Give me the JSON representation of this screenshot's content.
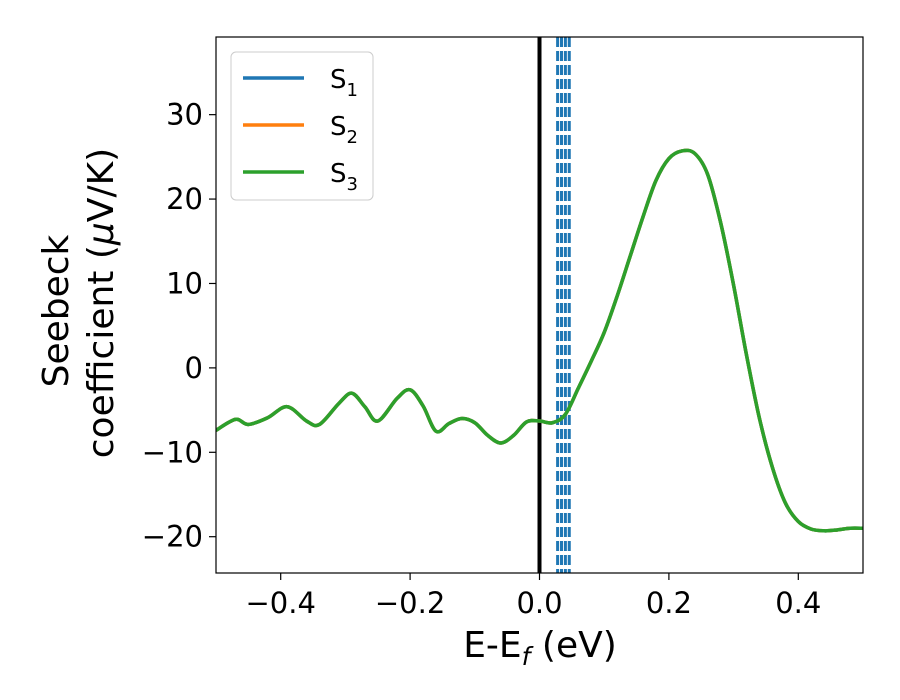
{
  "chart_data": {
    "type": "line",
    "xlabel": {
      "base": "E-E",
      "sub": "f",
      "rest": " (eV)"
    },
    "ylabel": {
      "line1": "Seebeck",
      "line2_pre": "coefficient  (",
      "mu": "μ",
      "line2_post": "V/K)"
    },
    "xlim": [
      -0.5,
      0.5
    ],
    "ylim": [
      -24.3,
      39.2
    ],
    "xticks": [
      -0.4,
      -0.2,
      0.0,
      0.2,
      0.4
    ],
    "xtick_labels": [
      "−0.4",
      "−0.2",
      "0.0",
      "0.2",
      "0.4"
    ],
    "yticks": [
      -20,
      -10,
      0,
      10,
      20,
      30
    ],
    "ytick_labels": [
      "−20",
      "−10",
      "0",
      "10",
      "20",
      "30"
    ],
    "grid": false,
    "legend_position": "top-left",
    "fermi_line": {
      "x": 0.0,
      "color": "#000000"
    },
    "dashed_lines": {
      "x": [
        0.028,
        0.034,
        0.04,
        0.046
      ],
      "color": "#1f77b4"
    },
    "series": [
      {
        "name": "S",
        "sub": "1",
        "color": "#1f77b4",
        "x": [
          -0.5,
          -0.47,
          -0.45,
          -0.42,
          -0.39,
          -0.36,
          -0.34,
          -0.31,
          -0.29,
          -0.27,
          -0.25,
          -0.22,
          -0.2,
          -0.18,
          -0.16,
          -0.14,
          -0.12,
          -0.1,
          -0.08,
          -0.06,
          -0.04,
          -0.02,
          0.0,
          0.02,
          0.04,
          0.06,
          0.08,
          0.1,
          0.12,
          0.14,
          0.16,
          0.18,
          0.2,
          0.22,
          0.24,
          0.26,
          0.28,
          0.3,
          0.32,
          0.34,
          0.36,
          0.38,
          0.4,
          0.42,
          0.44,
          0.46,
          0.48,
          0.5
        ],
        "y": [
          -7.4,
          -6.1,
          -6.7,
          -5.9,
          -4.6,
          -6.3,
          -6.7,
          -4.2,
          -3.0,
          -4.6,
          -6.3,
          -3.6,
          -2.6,
          -4.5,
          -7.5,
          -6.6,
          -6.0,
          -6.5,
          -8.0,
          -8.9,
          -8.0,
          -6.4,
          -6.3,
          -6.5,
          -5.5,
          -2.4,
          0.8,
          4.2,
          8.5,
          13.2,
          17.9,
          22.2,
          24.8,
          25.7,
          25.4,
          22.9,
          17.2,
          9.8,
          1.5,
          -6.0,
          -11.8,
          -16.0,
          -18.2,
          -19.1,
          -19.3,
          -19.2,
          -19.0,
          -19.0
        ]
      },
      {
        "name": "S",
        "sub": "2",
        "color": "#ff7f0e",
        "x": [
          -0.5,
          -0.47,
          -0.45,
          -0.42,
          -0.39,
          -0.36,
          -0.34,
          -0.31,
          -0.29,
          -0.27,
          -0.25,
          -0.22,
          -0.2,
          -0.18,
          -0.16,
          -0.14,
          -0.12,
          -0.1,
          -0.08,
          -0.06,
          -0.04,
          -0.02,
          0.0,
          0.02,
          0.04,
          0.06,
          0.08,
          0.1,
          0.12,
          0.14,
          0.16,
          0.18,
          0.2,
          0.22,
          0.24,
          0.26,
          0.28,
          0.3,
          0.32,
          0.34,
          0.36,
          0.38,
          0.4,
          0.42,
          0.44,
          0.46,
          0.48,
          0.5
        ],
        "y": [
          -7.4,
          -6.1,
          -6.7,
          -5.9,
          -4.6,
          -6.3,
          -6.7,
          -4.2,
          -3.0,
          -4.6,
          -6.3,
          -3.6,
          -2.6,
          -4.5,
          -7.5,
          -6.6,
          -6.0,
          -6.5,
          -8.0,
          -8.9,
          -8.0,
          -6.4,
          -6.3,
          -6.5,
          -5.5,
          -2.4,
          0.8,
          4.2,
          8.5,
          13.2,
          17.9,
          22.2,
          24.8,
          25.7,
          25.4,
          22.9,
          17.2,
          9.8,
          1.5,
          -6.0,
          -11.8,
          -16.0,
          -18.2,
          -19.1,
          -19.3,
          -19.2,
          -19.0,
          -19.0
        ]
      },
      {
        "name": "S",
        "sub": "3",
        "color": "#2ca02c",
        "x": [
          -0.5,
          -0.47,
          -0.45,
          -0.42,
          -0.39,
          -0.36,
          -0.34,
          -0.31,
          -0.29,
          -0.27,
          -0.25,
          -0.22,
          -0.2,
          -0.18,
          -0.16,
          -0.14,
          -0.12,
          -0.1,
          -0.08,
          -0.06,
          -0.04,
          -0.02,
          0.0,
          0.02,
          0.04,
          0.06,
          0.08,
          0.1,
          0.12,
          0.14,
          0.16,
          0.18,
          0.2,
          0.22,
          0.24,
          0.26,
          0.28,
          0.3,
          0.32,
          0.34,
          0.36,
          0.38,
          0.4,
          0.42,
          0.44,
          0.46,
          0.48,
          0.5
        ],
        "y": [
          -7.4,
          -6.1,
          -6.7,
          -5.9,
          -4.6,
          -6.3,
          -6.7,
          -4.2,
          -3.0,
          -4.6,
          -6.3,
          -3.6,
          -2.6,
          -4.5,
          -7.5,
          -6.6,
          -6.0,
          -6.5,
          -8.0,
          -8.9,
          -8.0,
          -6.4,
          -6.3,
          -6.5,
          -5.5,
          -2.4,
          0.8,
          4.2,
          8.5,
          13.2,
          17.9,
          22.2,
          24.8,
          25.7,
          25.4,
          22.9,
          17.2,
          9.8,
          1.5,
          -6.0,
          -11.8,
          -16.0,
          -18.2,
          -19.1,
          -19.3,
          -19.2,
          -19.0,
          -19.0
        ]
      }
    ]
  }
}
